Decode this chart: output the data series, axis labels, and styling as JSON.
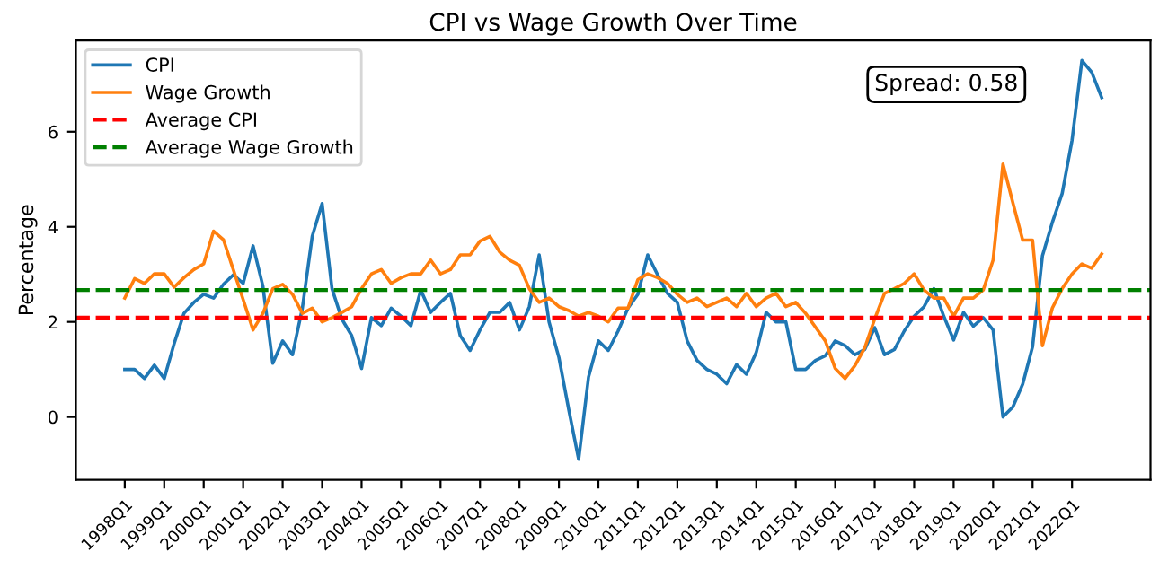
{
  "chart_data": {
    "type": "line",
    "title": "CPI vs Wage Growth Over Time",
    "ylabel": "Percentage",
    "categories": [
      "1998Q1",
      null,
      null,
      null,
      "1999Q1",
      null,
      null,
      null,
      "2000Q1",
      null,
      null,
      null,
      "2001Q1",
      null,
      null,
      null,
      "2002Q1",
      null,
      null,
      null,
      "2003Q1",
      null,
      null,
      null,
      "2004Q1",
      null,
      null,
      null,
      "2005Q1",
      null,
      null,
      null,
      "2006Q1",
      null,
      null,
      null,
      "2007Q1",
      null,
      null,
      null,
      "2008Q1",
      null,
      null,
      null,
      "2009Q1",
      null,
      null,
      null,
      "2010Q1",
      null,
      null,
      null,
      "2011Q1",
      null,
      null,
      null,
      "2012Q1",
      null,
      null,
      null,
      "2013Q1",
      null,
      null,
      null,
      "2014Q1",
      null,
      null,
      null,
      "2015Q1",
      null,
      null,
      null,
      "2016Q1",
      null,
      null,
      null,
      "2017Q1",
      null,
      null,
      null,
      "2018Q1",
      null,
      null,
      null,
      "2019Q1",
      null,
      null,
      null,
      "2020Q1",
      null,
      null,
      null,
      "2021Q1",
      null,
      null,
      null,
      "2022Q1",
      null,
      null,
      null
    ],
    "series": [
      {
        "name": "CPI",
        "color": "#1f77b4",
        "values": [
          1.0,
          1.0,
          0.81,
          1.09,
          0.81,
          1.54,
          2.18,
          2.41,
          2.58,
          2.5,
          2.79,
          2.99,
          2.81,
          3.6,
          2.75,
          1.13,
          1.6,
          1.31,
          2.29,
          3.8,
          4.49,
          2.7,
          2.06,
          1.71,
          1.02,
          2.09,
          1.92,
          2.29,
          2.12,
          1.92,
          2.67,
          2.2,
          2.41,
          2.6,
          1.71,
          1.4,
          1.83,
          2.2,
          2.2,
          2.41,
          1.83,
          2.32,
          3.41,
          2.0,
          1.25,
          0.15,
          -0.89,
          0.84,
          1.6,
          1.4,
          1.81,
          2.29,
          2.58,
          3.41,
          2.99,
          2.6,
          2.41,
          1.6,
          1.19,
          1.0,
          0.9,
          0.7,
          1.1,
          0.9,
          1.36,
          2.2,
          2.0,
          2.0,
          1.0,
          1.0,
          1.19,
          1.29,
          1.6,
          1.5,
          1.31,
          1.42,
          1.88,
          1.31,
          1.42,
          1.81,
          2.12,
          2.32,
          2.7,
          2.12,
          1.62,
          2.2,
          1.91,
          2.09,
          1.83,
          0.0,
          0.21,
          0.69,
          1.48,
          3.39,
          4.09,
          4.7,
          5.82,
          7.5,
          7.25,
          6.72
        ]
      },
      {
        "name": "Wage Growth",
        "color": "#ff7f0e",
        "values": [
          2.5,
          2.91,
          2.81,
          3.01,
          3.01,
          2.73,
          2.93,
          3.1,
          3.22,
          3.91,
          3.73,
          3.1,
          2.47,
          1.83,
          2.18,
          2.7,
          2.79,
          2.58,
          2.18,
          2.29,
          2.0,
          2.09,
          2.2,
          2.32,
          2.7,
          3.01,
          3.1,
          2.81,
          2.93,
          3.01,
          3.01,
          3.3,
          3.01,
          3.1,
          3.41,
          3.41,
          3.7,
          3.8,
          3.47,
          3.3,
          3.19,
          2.7,
          2.41,
          2.5,
          2.32,
          2.24,
          2.12,
          2.2,
          2.12,
          2.0,
          2.29,
          2.29,
          2.89,
          3.01,
          2.93,
          2.81,
          2.58,
          2.41,
          2.5,
          2.32,
          2.41,
          2.5,
          2.32,
          2.6,
          2.32,
          2.5,
          2.6,
          2.32,
          2.41,
          2.18,
          1.89,
          1.6,
          1.02,
          0.81,
          1.08,
          1.46,
          2.06,
          2.6,
          2.7,
          2.81,
          3.01,
          2.67,
          2.5,
          2.5,
          2.12,
          2.5,
          2.5,
          2.67,
          3.3,
          5.32,
          4.51,
          3.72,
          3.72,
          1.5,
          2.29,
          2.7,
          3.01,
          3.22,
          3.13,
          3.43
        ]
      }
    ],
    "ref_lines": [
      {
        "axis": "y",
        "value": 2.09,
        "label": "Average CPI",
        "color": "#ff0000",
        "line_style": "dashed"
      },
      {
        "axis": "y",
        "value": 2.67,
        "label": "Average Wage Growth",
        "color": "#008000",
        "line_style": "dashed"
      }
    ],
    "annotations": [
      "Spread: 0.58"
    ],
    "ylim": [
      -1.32,
      7.92
    ],
    "yticks": [
      0,
      2,
      4,
      6
    ],
    "legend": "top left",
    "grid": false,
    "marker": "none",
    "line_style": "solid"
  }
}
